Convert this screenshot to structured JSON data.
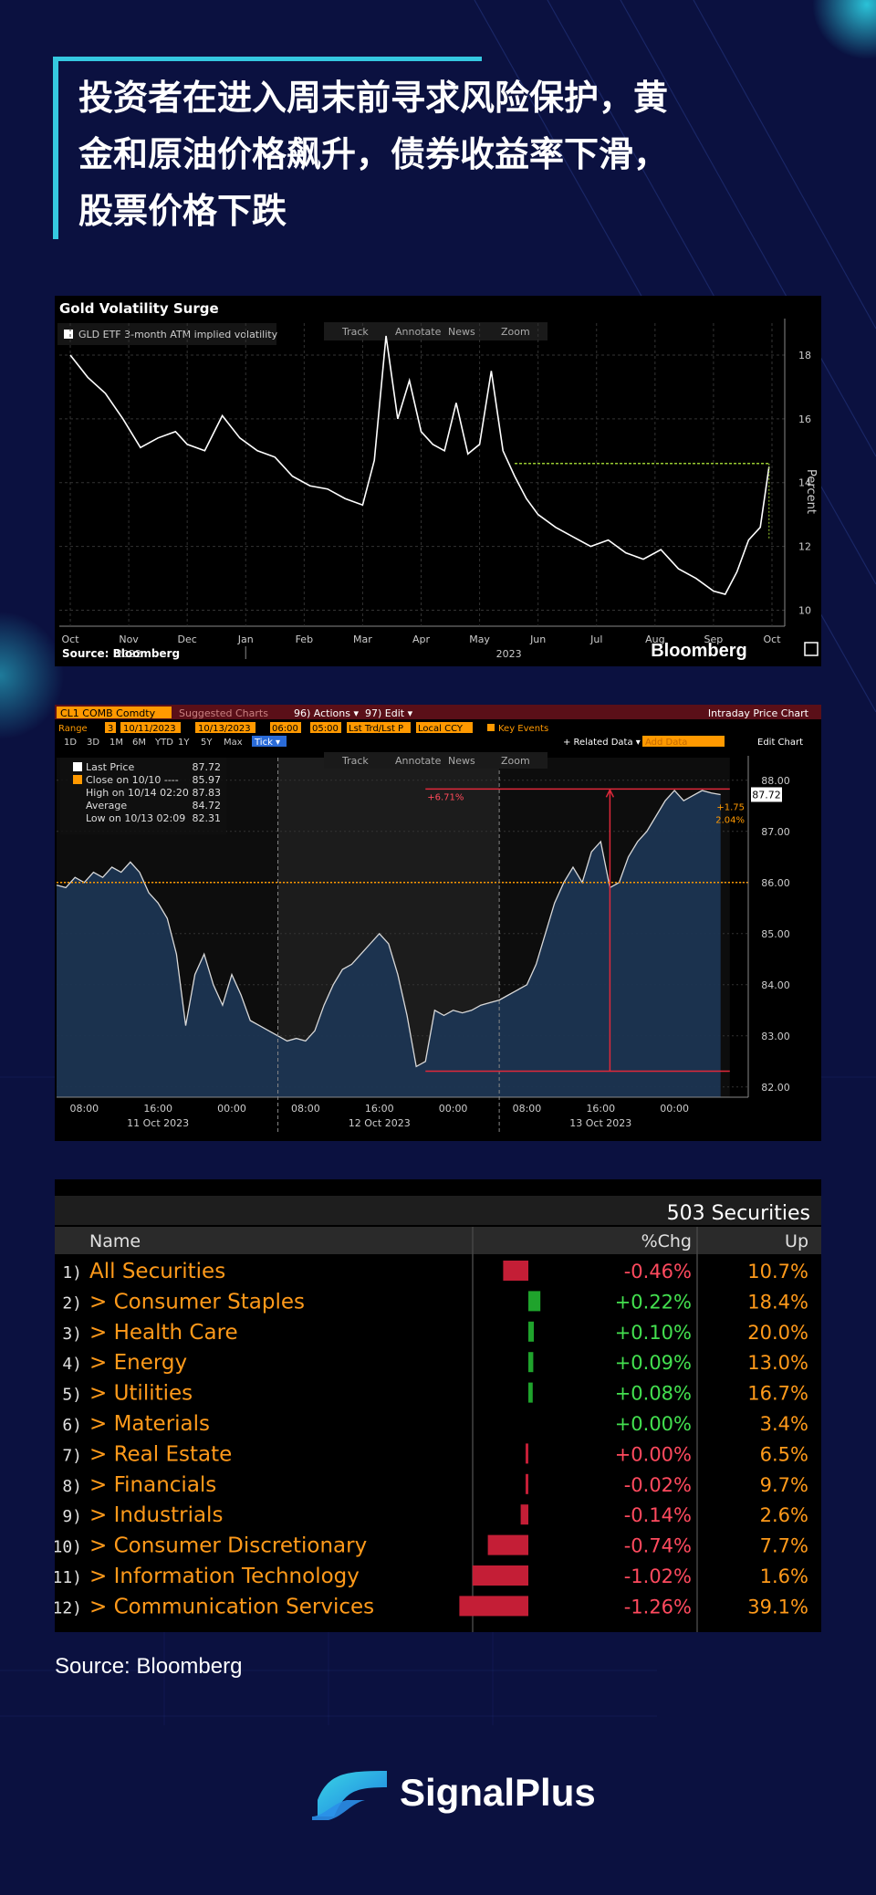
{
  "headline": "投资者在进入周末前寻求风险保护，黄金和原油价格飙升，债券收益率下滑，股票价格下跌",
  "headline_lines": [
    "投资者在进入周末前寻求风险保护，黄",
    "金和原油价格飙升，债券收益率下滑，",
    "股票价格下跌"
  ],
  "chart1": {
    "title": "Gold Volatility Surge",
    "legend": "GLD ETF 3-month ATM implied volatility",
    "toolbar": [
      "Track",
      "Annotate",
      "News",
      "Zoom"
    ],
    "source": "Source: Bloomberg",
    "brand": "Bloomberg",
    "ylabel": "Percent"
  },
  "chart2": {
    "ticker": "CL1 COMB Comdty",
    "suggested": "Suggested Charts",
    "actions": "96) Actions ▾",
    "edit": "97) Edit ▾",
    "chart_name": "Intraday Price Chart",
    "range_label": "Range",
    "range_num": "3",
    "date_from": "10/11/2023",
    "date_to": "10/13/2023",
    "time_from": "06:00",
    "time_to": "05:00",
    "mode": "Lst Trd/Lst P",
    "ccy": "Local CCY",
    "key_events": "Key Events",
    "periods": [
      "1D",
      "3D",
      "1M",
      "6M",
      "YTD",
      "1Y",
      "5Y",
      "Max"
    ],
    "tick": "Tick ▾",
    "related": "+ Related Data ▾",
    "add_data": "Add Data",
    "edit_chart": "Edit Chart",
    "toolbar": [
      "Track",
      "Annotate",
      "News",
      "Zoom"
    ],
    "legend": [
      {
        "label": "Last Price",
        "value": "87.72"
      },
      {
        "label": "Close on 10/10 ----",
        "value": "85.97"
      },
      {
        "label": "High on 10/14 02:20",
        "value": "87.83"
      },
      {
        "label": "Average",
        "value": "84.72"
      },
      {
        "label": "Low on 10/13 02:09",
        "value": "82.31"
      }
    ],
    "annot_pct": "+6.71%",
    "annot_right": "+1.75",
    "annot_right_pct": "2.04%",
    "last_price_tag": "87.72"
  },
  "table": {
    "count_label": "503 Securities",
    "headers": {
      "name": "Name",
      "chg": "%Chg",
      "up": "Up"
    },
    "rows": [
      {
        "num": "1)",
        "name": "All Securities",
        "chg": "-0.46%",
        "up": "10.7%",
        "value": -0.46
      },
      {
        "num": "2)",
        "name": "> Consumer Staples",
        "chg": "+0.22%",
        "up": "18.4%",
        "value": 0.22
      },
      {
        "num": "3)",
        "name": "> Health Care",
        "chg": "+0.10%",
        "up": "20.0%",
        "value": 0.1
      },
      {
        "num": "4)",
        "name": "> Energy",
        "chg": "+0.09%",
        "up": "13.0%",
        "value": 0.09
      },
      {
        "num": "5)",
        "name": "> Utilities",
        "chg": "+0.08%",
        "up": "16.7%",
        "value": 0.08
      },
      {
        "num": "6)",
        "name": "> Materials",
        "chg": "+0.00%",
        "up": "3.4%",
        "value": 0.0
      },
      {
        "num": "7)",
        "name": "> Real Estate",
        "chg": "+0.00%",
        "up": "6.5%",
        "value": -0.001
      },
      {
        "num": "8)",
        "name": "> Financials",
        "chg": "-0.02%",
        "up": "9.7%",
        "value": -0.02
      },
      {
        "num": "9)",
        "name": "> Industrials",
        "chg": "-0.14%",
        "up": "2.6%",
        "value": -0.14
      },
      {
        "num": "10)",
        "name": "> Consumer Discretionary",
        "chg": "-0.74%",
        "up": "7.7%",
        "value": -0.74
      },
      {
        "num": "11)",
        "name": "> Information Technology",
        "chg": "-1.02%",
        "up": "1.6%",
        "value": -1.02
      },
      {
        "num": "12)",
        "name": "> Communication Services",
        "chg": "-1.26%",
        "up": "39.1%",
        "value": -1.26
      }
    ]
  },
  "footer_source": "Source: Bloomberg",
  "brand_name": "SignalPlus",
  "chart_data": [
    {
      "type": "line",
      "title": "Gold Volatility Surge",
      "ylabel": "Percent",
      "ylim": [
        9.5,
        19
      ],
      "yticks": [
        10,
        12,
        14,
        16,
        18
      ],
      "xtick_labels": [
        "Oct",
        "Nov",
        "Dec",
        "Jan",
        "Feb",
        "Mar",
        "Apr",
        "May",
        "Jun",
        "Jul",
        "Aug",
        "Sep",
        "Oct"
      ],
      "year_labels": [
        "2022",
        "2023"
      ],
      "series": [
        {
          "name": "GLD ETF 3-month ATM implied volatility",
          "x": [
            0,
            0.3,
            0.6,
            0.9,
            1.2,
            1.5,
            1.8,
            2.0,
            2.3,
            2.6,
            2.9,
            3.2,
            3.5,
            3.8,
            4.1,
            4.4,
            4.7,
            5.0,
            5.2,
            5.4,
            5.6,
            5.8,
            6.0,
            6.2,
            6.4,
            6.6,
            6.8,
            7.0,
            7.2,
            7.4,
            7.6,
            7.8,
            8.0,
            8.3,
            8.6,
            8.9,
            9.2,
            9.5,
            9.8,
            10.1,
            10.4,
            10.7,
            11.0,
            11.2,
            11.4,
            11.6,
            11.8,
            11.95
          ],
          "y": [
            18.0,
            17.3,
            16.8,
            16.0,
            15.1,
            15.4,
            15.6,
            15.2,
            15.0,
            16.1,
            15.4,
            15.0,
            14.8,
            14.2,
            13.9,
            13.8,
            13.5,
            13.3,
            14.7,
            18.6,
            16.0,
            17.2,
            15.6,
            15.2,
            15.0,
            16.5,
            14.9,
            15.2,
            17.5,
            15.0,
            14.2,
            13.5,
            13.0,
            12.6,
            12.3,
            12.0,
            12.2,
            11.8,
            11.6,
            11.9,
            11.3,
            11.0,
            10.6,
            10.5,
            11.2,
            12.2,
            12.6,
            14.5
          ]
        }
      ],
      "annotations": [
        {
          "type": "hline",
          "y": 14.6,
          "from_x": 7.6,
          "to_x": 11.95,
          "color": "#9acd32"
        }
      ]
    },
    {
      "type": "area",
      "title": "Intraday Price Chart",
      "ylim": [
        81.8,
        88.3
      ],
      "yticks": [
        82.0,
        83.0,
        84.0,
        85.0,
        86.0,
        87.0,
        88.0
      ],
      "xtick_labels": [
        "08:00",
        "16:00",
        "00:00",
        "08:00",
        "16:00",
        "00:00",
        "08:00",
        "16:00",
        "00:00"
      ],
      "day_labels": [
        "11 Oct 2023",
        "12 Oct 2023",
        "13 Oct 2023"
      ],
      "reference_line": 86.0,
      "series": [
        {
          "name": "Last Price",
          "x": [
            0,
            1,
            2,
            3,
            4,
            5,
            6,
            7,
            8,
            9,
            10,
            11,
            12,
            13,
            14,
            15,
            16,
            17,
            18,
            19,
            20,
            21,
            22,
            23,
            24,
            25,
            26,
            27,
            28,
            29,
            30,
            31,
            32,
            33,
            34,
            35,
            36,
            37,
            38,
            39,
            40,
            41,
            42,
            43,
            44,
            45,
            46,
            47,
            48,
            49,
            50,
            51,
            52,
            53,
            54,
            55,
            56,
            57,
            58,
            59,
            60,
            61,
            62,
            63,
            64,
            65,
            66,
            67,
            68,
            69,
            70,
            71,
            72
          ],
          "y": [
            85.95,
            85.9,
            86.1,
            86.0,
            86.2,
            86.1,
            86.3,
            86.2,
            86.4,
            86.2,
            85.8,
            85.6,
            85.3,
            84.6,
            83.2,
            84.2,
            84.6,
            84.0,
            83.6,
            84.2,
            83.8,
            83.3,
            83.2,
            83.1,
            83.0,
            82.9,
            82.95,
            82.9,
            83.1,
            83.6,
            84.0,
            84.3,
            84.4,
            84.6,
            84.8,
            85.0,
            84.8,
            84.2,
            83.4,
            82.4,
            82.5,
            83.5,
            83.4,
            83.5,
            83.45,
            83.5,
            83.6,
            83.65,
            83.7,
            83.8,
            83.9,
            84.0,
            84.4,
            85.0,
            85.6,
            86.0,
            86.3,
            86.0,
            86.6,
            86.8,
            85.9,
            86.0,
            86.5,
            86.8,
            87.0,
            87.3,
            87.6,
            87.8,
            87.6,
            87.7,
            87.8,
            87.75,
            87.72
          ]
        }
      ],
      "annotations": [
        {
          "type": "range",
          "low": 82.31,
          "high": 87.83,
          "label": "+6.71%"
        }
      ]
    },
    {
      "type": "bar",
      "title": "",
      "categories": [
        "All Securities",
        "Consumer Staples",
        "Health Care",
        "Energy",
        "Utilities",
        "Materials",
        "Real Estate",
        "Financials",
        "Industrials",
        "Consumer Discretionary",
        "Information Technology",
        "Communication Services"
      ],
      "values": [
        -0.46,
        0.22,
        0.1,
        0.09,
        0.08,
        0.0,
        0.0,
        -0.02,
        -0.14,
        -0.74,
        -1.02,
        -1.26
      ],
      "up_pct": [
        10.7,
        18.4,
        20.0,
        13.0,
        16.7,
        3.4,
        6.5,
        9.7,
        2.6,
        7.7,
        1.6,
        39.1
      ]
    }
  ]
}
